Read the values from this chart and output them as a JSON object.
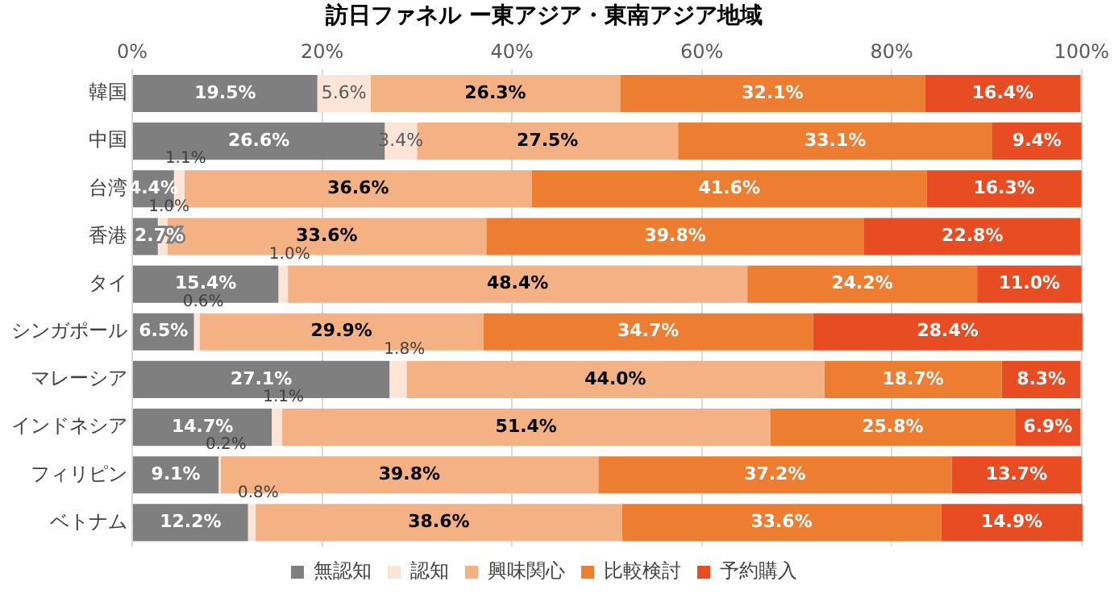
{
  "chart_data": {
    "type": "bar",
    "title": "訪日ファネル ー東アジア・東南アジア地域",
    "orientation": "horizontal",
    "stacked": true,
    "categories": [
      "韓国",
      "中国",
      "台湾",
      "香港",
      "タイ",
      "シンガポール",
      "マレーシア",
      "インドネシア",
      "フィリピン",
      "ベトナム"
    ],
    "series": [
      {
        "name": "無認知",
        "color": "#7f7f7f",
        "values": [
          19.5,
          26.6,
          4.4,
          2.7,
          15.4,
          6.5,
          27.1,
          14.7,
          9.1,
          12.2
        ],
        "value_labels": [
          "19.5%",
          "26.6%",
          "4.4%",
          "2.7%",
          "15.4%",
          "6.5%",
          "27.1%",
          "14.7%",
          "9.1%",
          "12.2%"
        ]
      },
      {
        "name": "認知",
        "color": "#fce4d6",
        "values": [
          5.6,
          3.4,
          1.1,
          1.0,
          1.0,
          0.6,
          1.8,
          1.1,
          0.2,
          0.8
        ],
        "value_labels": [
          "5.6%",
          "3.4%",
          "1.1%",
          "1.0%",
          "1.0%",
          "0.6%",
          "1.8%",
          "1.1%",
          "0.2%",
          "0.8%"
        ]
      },
      {
        "name": "興味関心",
        "color": "#f4b183",
        "values": [
          26.3,
          27.5,
          36.6,
          33.6,
          48.4,
          29.9,
          44.0,
          51.4,
          39.8,
          38.6
        ],
        "value_labels": [
          "26.3%",
          "27.5%",
          "36.6%",
          "33.6%",
          "48.4%",
          "29.9%",
          "44.0%",
          "51.4%",
          "39.8%",
          "38.6%"
        ]
      },
      {
        "name": "比較検討",
        "color": "#ed7d31",
        "values": [
          32.1,
          33.1,
          41.6,
          39.8,
          24.2,
          34.7,
          18.7,
          25.8,
          37.2,
          33.6
        ],
        "value_labels": [
          "32.1%",
          "33.1%",
          "41.6%",
          "39.8%",
          "24.2%",
          "34.7%",
          "18.7%",
          "25.8%",
          "37.2%",
          "33.6%"
        ]
      },
      {
        "name": "予約購入",
        "color": "#e84c22",
        "values": [
          16.4,
          9.4,
          16.3,
          22.8,
          11.0,
          28.4,
          8.3,
          6.9,
          13.7,
          14.9
        ],
        "value_labels": [
          "16.4%",
          "9.4%",
          "16.3%",
          "22.8%",
          "11.0%",
          "28.4%",
          "8.3%",
          "6.9%",
          "13.7%",
          "14.9%"
        ]
      }
    ],
    "xlim": [
      0,
      100
    ],
    "xticks": [
      {
        "value": 0,
        "label": "0%"
      },
      {
        "value": 20,
        "label": "20%"
      },
      {
        "value": 40,
        "label": "40%"
      },
      {
        "value": 60,
        "label": "60%"
      },
      {
        "value": 80,
        "label": "80%"
      },
      {
        "value": 100,
        "label": "100%"
      }
    ],
    "grid": "x",
    "legend": "bottom"
  }
}
